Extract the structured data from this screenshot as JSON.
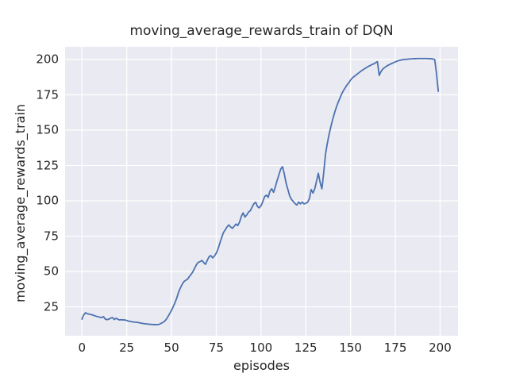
{
  "figure": {
    "background": "#ffffff",
    "axes_background": "#eaeaf2",
    "grid_color": "#ffffff",
    "text_color": "#262626",
    "line_color": "#4c72b0",
    "line_width": 1.8
  },
  "chart_data": {
    "type": "line",
    "title": "moving_average_rewards_train of DQN",
    "xlabel": "episodes",
    "ylabel": "moving_average_rewards_train",
    "legend": null,
    "grid": true,
    "xlim": [
      -9.44,
      210.0
    ],
    "ylim": [
      4.5,
      209.0
    ],
    "xticks": [
      0,
      25,
      50,
      75,
      100,
      125,
      150,
      175,
      200
    ],
    "yticks": [
      25,
      50,
      75,
      100,
      125,
      150,
      175,
      200
    ],
    "series": [
      {
        "name": "moving_average_rewards_train",
        "points": [
          [
            0,
            16.3
          ],
          [
            0.5,
            18.0
          ],
          [
            1,
            19.3
          ],
          [
            2,
            20.8
          ],
          [
            3,
            20.0
          ],
          [
            4,
            19.8
          ],
          [
            5,
            19.5
          ],
          [
            6,
            19.2
          ],
          [
            7,
            18.7
          ],
          [
            8,
            18.3
          ],
          [
            9,
            18.0
          ],
          [
            10,
            17.6
          ],
          [
            11,
            17.4
          ],
          [
            12,
            18.0
          ],
          [
            13,
            16.3
          ],
          [
            14,
            15.9
          ],
          [
            15,
            16.3
          ],
          [
            16,
            16.9
          ],
          [
            17,
            17.4
          ],
          [
            18,
            16.0
          ],
          [
            19,
            16.9
          ],
          [
            20,
            16.2
          ],
          [
            21,
            15.7
          ],
          [
            22,
            15.9
          ],
          [
            23,
            15.7
          ],
          [
            24,
            15.7
          ],
          [
            25,
            15.3
          ],
          [
            26,
            14.9
          ],
          [
            27,
            14.6
          ],
          [
            28,
            14.4
          ],
          [
            29,
            14.2
          ],
          [
            30,
            14.1
          ],
          [
            31,
            14.0
          ],
          [
            32,
            13.7
          ],
          [
            33,
            13.4
          ],
          [
            34,
            13.2
          ],
          [
            35,
            13.0
          ],
          [
            36,
            12.9
          ],
          [
            37,
            12.7
          ],
          [
            38,
            12.6
          ],
          [
            39,
            12.5
          ],
          [
            40,
            12.4
          ],
          [
            41,
            12.4
          ],
          [
            42,
            12.4
          ],
          [
            43,
            12.5
          ],
          [
            44,
            13.2
          ],
          [
            45,
            13.8
          ],
          [
            46,
            14.6
          ],
          [
            47,
            16.0
          ],
          [
            48,
            18.0
          ],
          [
            49,
            20.2
          ],
          [
            50,
            22.5
          ],
          [
            51,
            25.2
          ],
          [
            52,
            28.0
          ],
          [
            53,
            31.5
          ],
          [
            54,
            35.5
          ],
          [
            55,
            38.5
          ],
          [
            56,
            41.0
          ],
          [
            57,
            42.9
          ],
          [
            58,
            43.8
          ],
          [
            59,
            44.6
          ],
          [
            60,
            46.5
          ],
          [
            61,
            48.0
          ],
          [
            62,
            50.0
          ],
          [
            63,
            52.5
          ],
          [
            64,
            55.0
          ],
          [
            65,
            56.5
          ],
          [
            66,
            57.0
          ],
          [
            67,
            57.8
          ],
          [
            68,
            56.3
          ],
          [
            69,
            55.1
          ],
          [
            70,
            58.0
          ],
          [
            71,
            60.5
          ],
          [
            72,
            61.2
          ],
          [
            73,
            59.6
          ],
          [
            74,
            61.0
          ],
          [
            75,
            63.0
          ],
          [
            76,
            66.0
          ],
          [
            77,
            70.0
          ],
          [
            78,
            74.0
          ],
          [
            79,
            77.5
          ],
          [
            80,
            79.5
          ],
          [
            81,
            81.5
          ],
          [
            82,
            83.0
          ],
          [
            83,
            81.5
          ],
          [
            84,
            80.5
          ],
          [
            85,
            82.0
          ],
          [
            86,
            83.5
          ],
          [
            87,
            82.5
          ],
          [
            88,
            85.0
          ],
          [
            89,
            89.0
          ],
          [
            90,
            91.5
          ],
          [
            91,
            88.5
          ],
          [
            92,
            90.0
          ],
          [
            93,
            92.0
          ],
          [
            94,
            93.0
          ],
          [
            95,
            95.5
          ],
          [
            96,
            98.0
          ],
          [
            97,
            99.0
          ],
          [
            98,
            96.0
          ],
          [
            99,
            95.0
          ],
          [
            100,
            96.5
          ],
          [
            101,
            99.5
          ],
          [
            102,
            103.0
          ],
          [
            103,
            104.0
          ],
          [
            104,
            102.5
          ],
          [
            105,
            107.0
          ],
          [
            106,
            108.5
          ],
          [
            107,
            106.0
          ],
          [
            108,
            110.0
          ],
          [
            109,
            114.5
          ],
          [
            110,
            118.5
          ],
          [
            111,
            122.5
          ],
          [
            112,
            124.2
          ],
          [
            113,
            119.0
          ],
          [
            114,
            112.5
          ],
          [
            115,
            108.0
          ],
          [
            116,
            103.5
          ],
          [
            117,
            101.0
          ],
          [
            118,
            99.5
          ],
          [
            119,
            98.0
          ],
          [
            120,
            97.0
          ],
          [
            121,
            99.2
          ],
          [
            122,
            97.8
          ],
          [
            123,
            99.2
          ],
          [
            124,
            97.8
          ],
          [
            125,
            98.3
          ],
          [
            126,
            99.0
          ],
          [
            127,
            101.5
          ],
          [
            128,
            108.0
          ],
          [
            129,
            105.5
          ],
          [
            130,
            108.5
          ],
          [
            131,
            114.0
          ],
          [
            132,
            119.5
          ],
          [
            133,
            113.0
          ],
          [
            134,
            108.5
          ],
          [
            135,
            120.0
          ],
          [
            136,
            133.0
          ],
          [
            137,
            140.5
          ],
          [
            138,
            147.0
          ],
          [
            139,
            152.5
          ],
          [
            140,
            157.5
          ],
          [
            141,
            162.0
          ],
          [
            142,
            166.0
          ],
          [
            143,
            169.5
          ],
          [
            144,
            172.5
          ],
          [
            145,
            175.5
          ],
          [
            146,
            178.0
          ],
          [
            147,
            180.0
          ],
          [
            148,
            182.0
          ],
          [
            149,
            183.5
          ],
          [
            150,
            185.5
          ],
          [
            151,
            187.0
          ],
          [
            152,
            188.0
          ],
          [
            153,
            189.0
          ],
          [
            154,
            190.0
          ],
          [
            155,
            191.0
          ],
          [
            156,
            192.0
          ],
          [
            157,
            192.8
          ],
          [
            158,
            193.6
          ],
          [
            159,
            194.4
          ],
          [
            160,
            195.2
          ],
          [
            161,
            195.8
          ],
          [
            162,
            196.5
          ],
          [
            163,
            197.0
          ],
          [
            164,
            197.8
          ],
          [
            165,
            198.5
          ],
          [
            166,
            188.8
          ],
          [
            167,
            191.5
          ],
          [
            168,
            193.3
          ],
          [
            169,
            194.3
          ],
          [
            170,
            195.2
          ],
          [
            171,
            196.0
          ],
          [
            172,
            196.6
          ],
          [
            173,
            197.2
          ],
          [
            174,
            197.8
          ],
          [
            175,
            198.3
          ],
          [
            176,
            198.9
          ],
          [
            177,
            199.3
          ],
          [
            178,
            199.6
          ],
          [
            179,
            199.9
          ],
          [
            180,
            200.1
          ],
          [
            182,
            200.3
          ],
          [
            184,
            200.5
          ],
          [
            186,
            200.6
          ],
          [
            188,
            200.7
          ],
          [
            190,
            200.7
          ],
          [
            192,
            200.7
          ],
          [
            194,
            200.6
          ],
          [
            196,
            200.4
          ],
          [
            197,
            200.0
          ],
          [
            198,
            190.0
          ],
          [
            199,
            177.5
          ]
        ]
      }
    ]
  }
}
